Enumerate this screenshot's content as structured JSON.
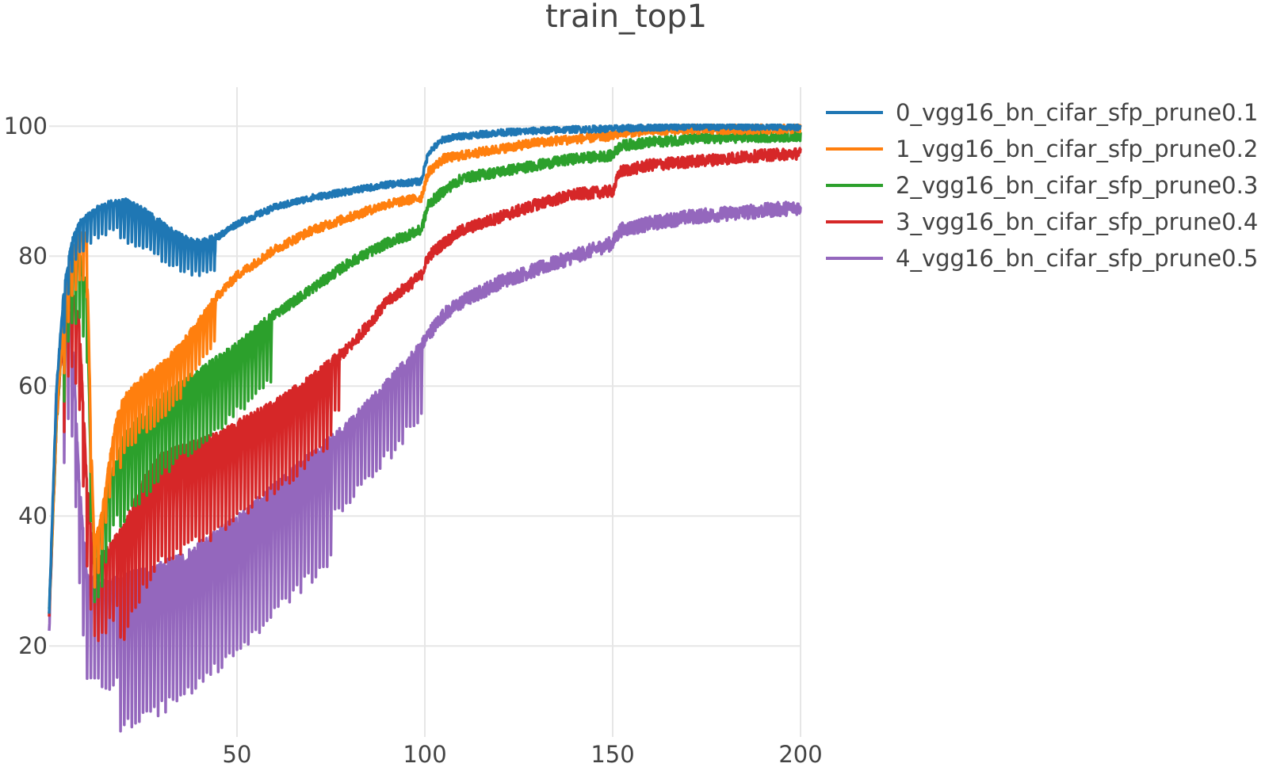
{
  "chart_data": {
    "type": "line",
    "title": "train_top1",
    "xlabel": "",
    "ylabel": "",
    "xlim": [
      0,
      200
    ],
    "ylim": [
      6,
      106
    ],
    "x_ticks": [
      50,
      100,
      150,
      200
    ],
    "y_ticks": [
      20,
      40,
      60,
      80,
      100
    ],
    "grid": true,
    "legend_position": "top-right",
    "series": [
      {
        "name": "0_vgg16_bn_cifar_sfp_prune0.1",
        "color": "#1f77b4",
        "ripple_amp": 7,
        "ripple_until": 45,
        "noise": 0.5,
        "points": [
          [
            0,
            25
          ],
          [
            2,
            60
          ],
          [
            4,
            75
          ],
          [
            6,
            82
          ],
          [
            8,
            85
          ],
          [
            12,
            87
          ],
          [
            16,
            88
          ],
          [
            20,
            88.5
          ],
          [
            25,
            87
          ],
          [
            30,
            85
          ],
          [
            35,
            83
          ],
          [
            40,
            82
          ],
          [
            45,
            83
          ],
          [
            50,
            85
          ],
          [
            60,
            87.5
          ],
          [
            70,
            89
          ],
          [
            80,
            90
          ],
          [
            90,
            91
          ],
          [
            99,
            91.5
          ],
          [
            101,
            96
          ],
          [
            105,
            98
          ],
          [
            110,
            98.5
          ],
          [
            120,
            99
          ],
          [
            130,
            99.3
          ],
          [
            140,
            99.5
          ],
          [
            150,
            99.6
          ],
          [
            160,
            99.8
          ],
          [
            170,
            99.9
          ],
          [
            180,
            99.9
          ],
          [
            200,
            99.9
          ]
        ]
      },
      {
        "name": "1_vgg16_bn_cifar_sfp_prune0.2",
        "color": "#ff7f0e",
        "ripple_amp": 10,
        "ripple_until": 45,
        "noise": 0.7,
        "points": [
          [
            0,
            25
          ],
          [
            2,
            55
          ],
          [
            4,
            72
          ],
          [
            6,
            80
          ],
          [
            8,
            83
          ],
          [
            10,
            83
          ],
          [
            11,
            55
          ],
          [
            12,
            35
          ],
          [
            14,
            40
          ],
          [
            16,
            48
          ],
          [
            18,
            55
          ],
          [
            20,
            58
          ],
          [
            25,
            61
          ],
          [
            30,
            63
          ],
          [
            35,
            66
          ],
          [
            40,
            70
          ],
          [
            45,
            74
          ],
          [
            50,
            77
          ],
          [
            60,
            81
          ],
          [
            70,
            84
          ],
          [
            80,
            86
          ],
          [
            90,
            88
          ],
          [
            99,
            89
          ],
          [
            101,
            93
          ],
          [
            105,
            95
          ],
          [
            110,
            95.5
          ],
          [
            120,
            96.5
          ],
          [
            130,
            97.5
          ],
          [
            140,
            98
          ],
          [
            150,
            98.5
          ],
          [
            152,
            99
          ],
          [
            160,
            99.3
          ],
          [
            170,
            99.5
          ],
          [
            180,
            99.5
          ],
          [
            200,
            99.6
          ]
        ]
      },
      {
        "name": "2_vgg16_bn_cifar_sfp_prune0.3",
        "color": "#2ca02c",
        "ripple_amp": 14,
        "ripple_until": 60,
        "noise": 0.8,
        "points": [
          [
            0,
            25
          ],
          [
            2,
            55
          ],
          [
            4,
            72
          ],
          [
            6,
            78
          ],
          [
            8,
            80
          ],
          [
            10,
            75
          ],
          [
            11,
            50
          ],
          [
            12,
            35
          ],
          [
            14,
            38
          ],
          [
            16,
            45
          ],
          [
            20,
            52
          ],
          [
            25,
            55
          ],
          [
            30,
            58
          ],
          [
            35,
            60
          ],
          [
            40,
            62
          ],
          [
            45,
            64
          ],
          [
            50,
            66
          ],
          [
            60,
            71
          ],
          [
            70,
            75
          ],
          [
            80,
            79
          ],
          [
            90,
            82
          ],
          [
            99,
            84
          ],
          [
            101,
            88
          ],
          [
            105,
            90
          ],
          [
            110,
            92
          ],
          [
            120,
            93
          ],
          [
            130,
            94
          ],
          [
            140,
            95
          ],
          [
            150,
            95.5
          ],
          [
            152,
            97
          ],
          [
            160,
            97.5
          ],
          [
            170,
            98
          ],
          [
            180,
            98.2
          ],
          [
            200,
            98.5
          ]
        ]
      },
      {
        "name": "3_vgg16_bn_cifar_sfp_prune0.4",
        "color": "#d62728",
        "ripple_amp": 18,
        "ripple_until": 78,
        "noise": 0.9,
        "points": [
          [
            0,
            25
          ],
          [
            2,
            55
          ],
          [
            4,
            70
          ],
          [
            6,
            75
          ],
          [
            8,
            70
          ],
          [
            10,
            45
          ],
          [
            12,
            32
          ],
          [
            15,
            34
          ],
          [
            20,
            38
          ],
          [
            25,
            45
          ],
          [
            30,
            49
          ],
          [
            35,
            50
          ],
          [
            40,
            51
          ],
          [
            45,
            52
          ],
          [
            50,
            54
          ],
          [
            60,
            57
          ],
          [
            70,
            61
          ],
          [
            80,
            66
          ],
          [
            90,
            73
          ],
          [
            99,
            77
          ],
          [
            101,
            80
          ],
          [
            105,
            82
          ],
          [
            110,
            84
          ],
          [
            120,
            86
          ],
          [
            130,
            88
          ],
          [
            140,
            89.5
          ],
          [
            150,
            90
          ],
          [
            152,
            93
          ],
          [
            160,
            94
          ],
          [
            170,
            94.5
          ],
          [
            180,
            95
          ],
          [
            190,
            95.5
          ],
          [
            200,
            95.8
          ]
        ]
      },
      {
        "name": "4_vgg16_bn_cifar_sfp_prune0.5",
        "color": "#9467bd",
        "ripple_amp": 24,
        "ripple_until": 100,
        "noise": 1.1,
        "points": [
          [
            0,
            22
          ],
          [
            2,
            60
          ],
          [
            4,
            72
          ],
          [
            6,
            70
          ],
          [
            8,
            45
          ],
          [
            10,
            30
          ],
          [
            15,
            29
          ],
          [
            20,
            30
          ],
          [
            25,
            31
          ],
          [
            30,
            32
          ],
          [
            35,
            33
          ],
          [
            40,
            35
          ],
          [
            45,
            37
          ],
          [
            50,
            39
          ],
          [
            60,
            44
          ],
          [
            70,
            49
          ],
          [
            80,
            54
          ],
          [
            90,
            60
          ],
          [
            99,
            66
          ],
          [
            101,
            68
          ],
          [
            105,
            71
          ],
          [
            110,
            73
          ],
          [
            120,
            76
          ],
          [
            130,
            78
          ],
          [
            140,
            80
          ],
          [
            150,
            82
          ],
          [
            152,
            84
          ],
          [
            160,
            85
          ],
          [
            170,
            86
          ],
          [
            180,
            86.5
          ],
          [
            190,
            87
          ],
          [
            200,
            87.5
          ]
        ]
      }
    ]
  }
}
